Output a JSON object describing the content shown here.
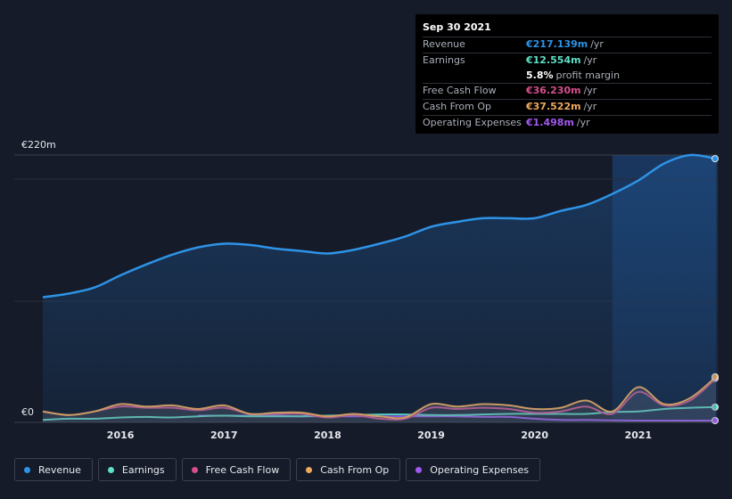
{
  "tooltip": {
    "date": "Sep 30 2021",
    "rows": [
      {
        "label": "Revenue",
        "value": "€217.139m",
        "unit": "/yr",
        "color": "#2e93e6"
      },
      {
        "label": "Earnings",
        "value": "€12.554m",
        "unit": "/yr",
        "color": "#5fdfc6"
      },
      {
        "label": "",
        "value": "5.8%",
        "unit": "profit margin",
        "color": "#ffffff"
      },
      {
        "label": "Free Cash Flow",
        "value": "€36.230m",
        "unit": "/yr",
        "color": "#d64f8c"
      },
      {
        "label": "Cash From Op",
        "value": "€37.522m",
        "unit": "/yr",
        "color": "#eeaa5c"
      },
      {
        "label": "Operating Expenses",
        "value": "€1.498m",
        "unit": "/yr",
        "color": "#a258ee"
      }
    ]
  },
  "legend": [
    {
      "label": "Revenue",
      "color": "#2e93e6"
    },
    {
      "label": "Earnings",
      "color": "#5fdfc6"
    },
    {
      "label": "Free Cash Flow",
      "color": "#d64f8c"
    },
    {
      "label": "Cash From Op",
      "color": "#eeaa5c"
    },
    {
      "label": "Operating Expenses",
      "color": "#a258ee"
    }
  ],
  "chart_data": {
    "type": "line",
    "y_top_label": "€220m",
    "y_bottom_label": "€0",
    "ylim": [
      0,
      220
    ],
    "xlim": [
      2015.25,
      2021.75
    ],
    "x_ticks": [
      "2016",
      "2017",
      "2018",
      "2019",
      "2020",
      "2021"
    ],
    "highlight_from": 2020.75,
    "series": [
      {
        "name": "Revenue",
        "color": "#2e93e6",
        "points": [
          [
            2015.25,
            103
          ],
          [
            2015.5,
            106
          ],
          [
            2015.75,
            111
          ],
          [
            2016.0,
            121
          ],
          [
            2016.25,
            130
          ],
          [
            2016.5,
            138
          ],
          [
            2016.75,
            144
          ],
          [
            2017.0,
            147
          ],
          [
            2017.25,
            146
          ],
          [
            2017.5,
            143
          ],
          [
            2017.75,
            141
          ],
          [
            2018.0,
            139
          ],
          [
            2018.25,
            142
          ],
          [
            2018.5,
            147
          ],
          [
            2018.75,
            153
          ],
          [
            2019.0,
            161
          ],
          [
            2019.25,
            165
          ],
          [
            2019.5,
            168
          ],
          [
            2019.75,
            168
          ],
          [
            2020.0,
            168
          ],
          [
            2020.25,
            174
          ],
          [
            2020.5,
            179
          ],
          [
            2020.75,
            188
          ],
          [
            2021.0,
            199
          ],
          [
            2021.25,
            213
          ],
          [
            2021.5,
            229
          ],
          [
            2021.75,
            217
          ]
        ]
      },
      {
        "name": "Earnings",
        "color": "#5fdfc6",
        "points": [
          [
            2015.25,
            2
          ],
          [
            2015.5,
            3
          ],
          [
            2015.75,
            3
          ],
          [
            2016.0,
            4
          ],
          [
            2016.25,
            4.5
          ],
          [
            2016.5,
            4
          ],
          [
            2016.75,
            5
          ],
          [
            2017.0,
            5.5
          ],
          [
            2017.25,
            5
          ],
          [
            2017.5,
            5
          ],
          [
            2017.75,
            5
          ],
          [
            2018.0,
            5.5
          ],
          [
            2018.25,
            6
          ],
          [
            2018.5,
            6.5
          ],
          [
            2018.75,
            6.5
          ],
          [
            2019.0,
            6
          ],
          [
            2019.25,
            6
          ],
          [
            2019.5,
            6.5
          ],
          [
            2019.75,
            7
          ],
          [
            2020.0,
            7
          ],
          [
            2020.25,
            7
          ],
          [
            2020.5,
            7
          ],
          [
            2020.75,
            8.5
          ],
          [
            2021.0,
            9
          ],
          [
            2021.25,
            11
          ],
          [
            2021.5,
            12
          ],
          [
            2021.75,
            12.554
          ]
        ]
      },
      {
        "name": "Free Cash Flow",
        "color": "#d64f8c",
        "points": [
          [
            2015.25,
            9
          ],
          [
            2015.5,
            6
          ],
          [
            2015.75,
            9
          ],
          [
            2016.0,
            13
          ],
          [
            2016.25,
            12
          ],
          [
            2016.5,
            12
          ],
          [
            2016.75,
            10
          ],
          [
            2017.0,
            12
          ],
          [
            2017.25,
            7
          ],
          [
            2017.5,
            7
          ],
          [
            2017.75,
            7
          ],
          [
            2018.0,
            4
          ],
          [
            2018.25,
            6
          ],
          [
            2018.5,
            3
          ],
          [
            2018.75,
            3
          ],
          [
            2019.0,
            12
          ],
          [
            2019.25,
            11
          ],
          [
            2019.5,
            12
          ],
          [
            2019.75,
            11
          ],
          [
            2020.0,
            8
          ],
          [
            2020.25,
            9
          ],
          [
            2020.5,
            13
          ],
          [
            2020.75,
            7
          ],
          [
            2021.0,
            25
          ],
          [
            2021.25,
            14
          ],
          [
            2021.5,
            18
          ],
          [
            2021.75,
            36.23
          ]
        ]
      },
      {
        "name": "Cash From Op",
        "color": "#eeaa5c",
        "points": [
          [
            2015.25,
            9
          ],
          [
            2015.5,
            6
          ],
          [
            2015.75,
            9
          ],
          [
            2016.0,
            15
          ],
          [
            2016.25,
            13
          ],
          [
            2016.5,
            14
          ],
          [
            2016.75,
            11
          ],
          [
            2017.0,
            14
          ],
          [
            2017.25,
            7
          ],
          [
            2017.5,
            8
          ],
          [
            2017.75,
            8
          ],
          [
            2018.0,
            5
          ],
          [
            2018.25,
            7
          ],
          [
            2018.5,
            5
          ],
          [
            2018.75,
            4
          ],
          [
            2019.0,
            15
          ],
          [
            2019.25,
            13
          ],
          [
            2019.5,
            15
          ],
          [
            2019.75,
            14
          ],
          [
            2020.0,
            11
          ],
          [
            2020.25,
            12
          ],
          [
            2020.5,
            18
          ],
          [
            2020.75,
            9
          ],
          [
            2021.0,
            29
          ],
          [
            2021.25,
            15
          ],
          [
            2021.5,
            20
          ],
          [
            2021.75,
            37.522
          ]
        ]
      },
      {
        "name": "Operating Expenses",
        "color": "#a258ee",
        "points": [
          [
            2016.75,
            5.5
          ],
          [
            2017.0,
            5.5
          ],
          [
            2017.25,
            5.5
          ],
          [
            2017.5,
            5.5
          ],
          [
            2017.75,
            5
          ],
          [
            2018.0,
            5
          ],
          [
            2018.25,
            5
          ],
          [
            2018.5,
            5
          ],
          [
            2018.75,
            5
          ],
          [
            2019.0,
            5
          ],
          [
            2019.25,
            5
          ],
          [
            2019.5,
            4.5
          ],
          [
            2019.75,
            4.5
          ],
          [
            2020.0,
            3
          ],
          [
            2020.25,
            2
          ],
          [
            2020.5,
            2
          ],
          [
            2020.75,
            1.6
          ],
          [
            2021.0,
            1.5
          ],
          [
            2021.25,
            1.5
          ],
          [
            2021.5,
            1.5
          ],
          [
            2021.75,
            1.498
          ]
        ]
      }
    ]
  }
}
